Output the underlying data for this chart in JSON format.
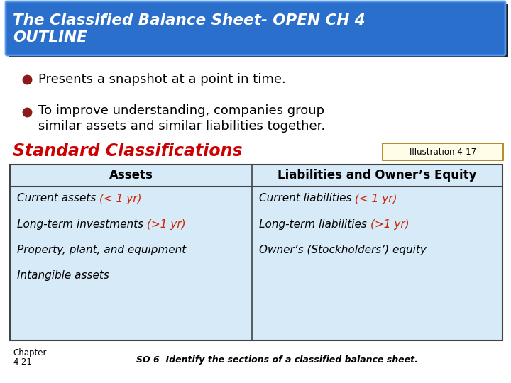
{
  "title_line1": "The Classified Balance Sheet- OPEN CH 4",
  "title_line2": "OUTLINE",
  "title_bg_color": "#2B6FCC",
  "title_shadow_color": "#1A1A1A",
  "title_text_color": "#FFFFFF",
  "bullet1": "Presents a snapshot at a point in time.",
  "bullet2_line1": "To improve understanding, companies group",
  "bullet2_line2": "similar assets and similar liabilities together.",
  "bullet_color": "#8B1A1A",
  "bullet_text_color": "#000000",
  "section_title": "Standard Classifications",
  "section_title_color": "#CC0000",
  "illustration_label": "Illustration 4-17",
  "illus_bg": "#FFFDE7",
  "illus_border": "#AA7700",
  "table_bg": "#D6EAF8",
  "table_border": "#444444",
  "col1_header": "Assets",
  "col2_header": "Liabilities and Owner’s Equity",
  "col1_items_black": [
    "Current assets ",
    "Long-term investments ",
    "Property, plant, and equipment",
    "Intangible assets"
  ],
  "col1_items_red": [
    "(< 1 yr)",
    "(>1 yr)",
    "",
    ""
  ],
  "col2_items_black": [
    "Current liabilities ",
    "Long-term liabilities ",
    "Owner’s (Stockholders’) equity"
  ],
  "col2_items_red": [
    "(< 1 yr)",
    "(>1 yr)",
    ""
  ],
  "red_text_color": "#CC2200",
  "footer_chapter_line1": "Chapter",
  "footer_chapter_line2": "4-21",
  "footer_so": "SO 6  Identify the sections of a classified balance sheet.",
  "bg_color": "#FFFFFF"
}
